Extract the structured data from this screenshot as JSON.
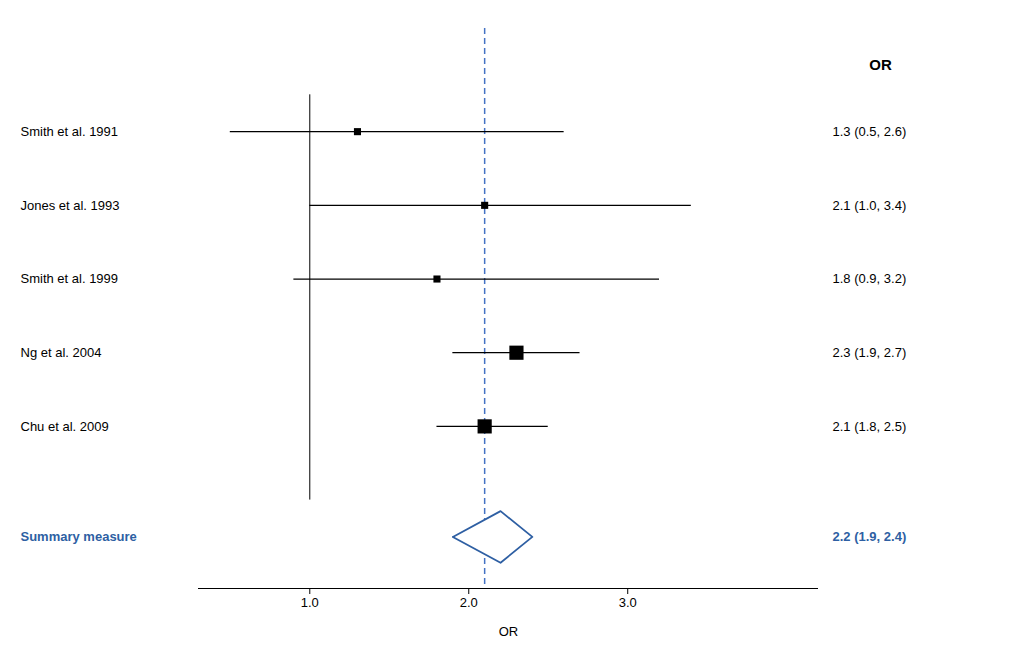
{
  "chart_data": {
    "type": "forest",
    "xlabel": "OR",
    "column_header": "OR",
    "rows": [
      {
        "label": "Smith et al. 1991",
        "value": 1.3,
        "ci_low": 0.5,
        "ci_high": 2.6,
        "weight": 1,
        "value_label": "1.3 (0.5, 2.6)"
      },
      {
        "label": "Jones et al. 1993",
        "value": 2.1,
        "ci_low": 1.0,
        "ci_high": 3.4,
        "weight": 1,
        "value_label": "2.1 (1.0, 3.4)"
      },
      {
        "label": "Smith et al. 1999",
        "value": 1.8,
        "ci_low": 0.9,
        "ci_high": 3.2,
        "weight": 1,
        "value_label": "1.8 (0.9, 3.2)"
      },
      {
        "label": "Ng et al. 2004",
        "value": 2.3,
        "ci_low": 1.9,
        "ci_high": 2.7,
        "weight": 4,
        "value_label": "2.3 (1.9, 2.7)"
      },
      {
        "label": "Chu et al. 2009",
        "value": 2.1,
        "ci_low": 1.8,
        "ci_high": 2.5,
        "weight": 4,
        "value_label": "2.1 (1.8, 2.5)"
      }
    ],
    "summary": {
      "label": "Summary measure",
      "value": 2.2,
      "ci_low": 1.9,
      "ci_high": 2.4,
      "value_label": "2.2 (1.9, 2.4)",
      "color": "#2E5FA3"
    },
    "color": "#000000",
    "reference_line": {
      "value": 2.1,
      "color": "#4472C4",
      "line_style": "dashed"
    },
    "no_effect_line": 1.0,
    "xlim": [
      0.3,
      4.2
    ],
    "xticks": [
      {
        "value": 1.0,
        "label": "1.0"
      },
      {
        "value": 2.0,
        "label": "2.0"
      },
      {
        "value": 3.0,
        "label": "3.0"
      }
    ],
    "grid": false
  }
}
